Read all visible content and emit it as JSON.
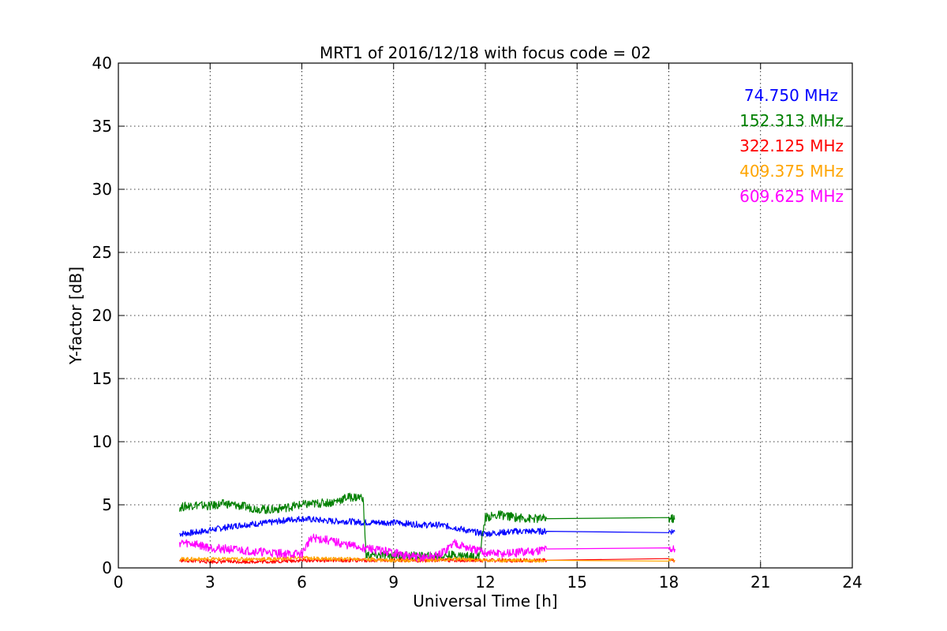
{
  "chart_data": {
    "type": "line",
    "title": "MRT1 of 2016/12/18 with focus code = 02",
    "xlabel": "Universal Time [h]",
    "ylabel": "Y-factor [dB]",
    "xlim": [
      0,
      24
    ],
    "ylim": [
      0,
      40
    ],
    "xticks": [
      0,
      3,
      6,
      9,
      12,
      15,
      18,
      21,
      24
    ],
    "yticks": [
      0,
      5,
      10,
      15,
      20,
      25,
      30,
      35,
      40
    ],
    "grid": true,
    "legend_position": "top-right",
    "series": [
      {
        "name": "74.750 MHz",
        "color": "#0000ff",
        "x": [
          2.0,
          2.5,
          3.0,
          3.5,
          4.0,
          4.5,
          5.0,
          5.5,
          6.0,
          6.5,
          7.0,
          7.5,
          8.0,
          8.5,
          9.0,
          9.5,
          10.0,
          10.5,
          11.0,
          11.5,
          12.0,
          12.5,
          13.0,
          13.5,
          14.0,
          18.0,
          18.2
        ],
        "y": [
          2.7,
          2.8,
          3.0,
          3.2,
          3.4,
          3.5,
          3.6,
          3.8,
          3.9,
          3.8,
          3.7,
          3.7,
          3.6,
          3.6,
          3.6,
          3.5,
          3.4,
          3.4,
          3.2,
          2.9,
          2.7,
          2.8,
          2.9,
          2.9,
          2.9,
          2.9,
          2.9
        ]
      },
      {
        "name": "152.313 MHz",
        "color": "#008000",
        "x": [
          2.0,
          2.5,
          3.0,
          3.5,
          4.0,
          4.5,
          5.0,
          5.5,
          6.0,
          6.5,
          7.0,
          7.5,
          8.0,
          8.1,
          9.0,
          10.0,
          11.0,
          11.8,
          12.0,
          12.5,
          13.0,
          13.5,
          14.0,
          18.0,
          18.2
        ],
        "y": [
          4.8,
          5.0,
          4.9,
          5.1,
          4.9,
          4.7,
          4.6,
          4.8,
          5.0,
          5.1,
          5.2,
          5.6,
          5.6,
          1.0,
          1.0,
          0.9,
          1.0,
          0.9,
          4.0,
          4.2,
          4.0,
          3.9,
          3.9,
          3.9,
          3.9
        ]
      },
      {
        "name": "322.125 MHz",
        "color": "#ff0000",
        "x": [
          2.0,
          3.0,
          4.0,
          5.0,
          6.0,
          7.0,
          8.0,
          9.0,
          10.0,
          11.0,
          12.0,
          13.0,
          14.0,
          18.0,
          18.2
        ],
        "y": [
          0.6,
          0.5,
          0.5,
          0.5,
          0.6,
          0.6,
          0.6,
          0.6,
          0.6,
          0.6,
          0.6,
          0.6,
          0.6,
          0.6,
          0.6
        ]
      },
      {
        "name": "409.375 MHz",
        "color": "#ffa500",
        "x": [
          2.0,
          3.0,
          4.0,
          5.0,
          6.0,
          7.0,
          8.0,
          9.0,
          10.0,
          11.0,
          12.0,
          13.0,
          14.0,
          18.0,
          18.2
        ],
        "y": [
          0.7,
          0.7,
          0.7,
          0.7,
          0.8,
          0.7,
          0.7,
          0.6,
          0.6,
          0.7,
          0.6,
          0.6,
          0.6,
          0.6,
          0.6
        ]
      },
      {
        "name": "609.625 MHz",
        "color": "#ff00ff",
        "x": [
          2.0,
          2.5,
          3.0,
          3.5,
          4.0,
          4.5,
          5.0,
          5.5,
          6.0,
          6.3,
          6.8,
          7.5,
          8.0,
          8.5,
          9.0,
          9.5,
          10.0,
          10.5,
          11.0,
          11.5,
          12.0,
          12.5,
          13.0,
          13.5,
          14.0,
          18.0,
          18.2
        ],
        "y": [
          2.0,
          1.9,
          1.6,
          1.5,
          1.4,
          1.3,
          1.2,
          1.1,
          1.1,
          2.4,
          2.2,
          1.8,
          1.6,
          1.4,
          1.2,
          0.9,
          0.8,
          1.0,
          2.0,
          1.5,
          1.2,
          1.1,
          1.2,
          1.3,
          1.5,
          1.5,
          1.5
        ]
      }
    ]
  }
}
